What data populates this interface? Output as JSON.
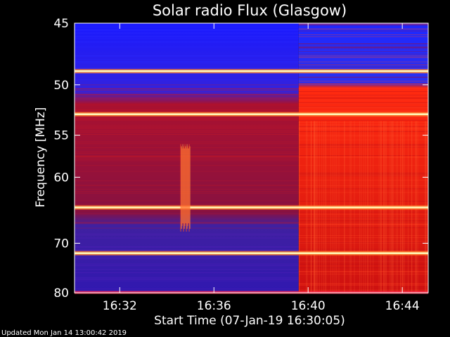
{
  "chart_data": {
    "type": "heatmap",
    "title": "Solar radio Flux (Glasgow)",
    "xlabel": "Start Time (07-Jan-19 16:30:05)",
    "ylabel": "Frequency [MHz]",
    "x_ticks": [
      "16:32",
      "16:36",
      "16:40",
      "16:44"
    ],
    "y_ticks": [
      "45",
      "50",
      "55",
      "60",
      "70",
      "80"
    ],
    "y_tick_values": [
      45,
      50,
      55,
      60,
      70,
      80
    ],
    "x_tick_minutes": [
      32,
      36,
      40,
      44
    ],
    "ylim": [
      45,
      80
    ],
    "xlim_minutes": [
      30.08,
      45.1
    ],
    "y_scale": "reciprocal",
    "colormap": [
      "#0000ff",
      "#800080",
      "#ff0000",
      "#ffff80"
    ],
    "features": [
      {
        "kind": "band",
        "freq": 48.8,
        "intensity": "bright"
      },
      {
        "kind": "band",
        "freq": 52.8,
        "intensity": "bright"
      },
      {
        "kind": "band",
        "freq": 64.2,
        "intensity": "bright"
      },
      {
        "kind": "band",
        "freq": 71.8,
        "intensity": "bright"
      },
      {
        "kind": "burst",
        "time_minutes": 34.8,
        "freq_range": [
          56,
          68
        ]
      },
      {
        "kind": "level_change",
        "time_minutes": 39.6
      }
    ]
  },
  "footer": {
    "updated": "Updated Mon Jan 14 13:00:42 2019"
  }
}
